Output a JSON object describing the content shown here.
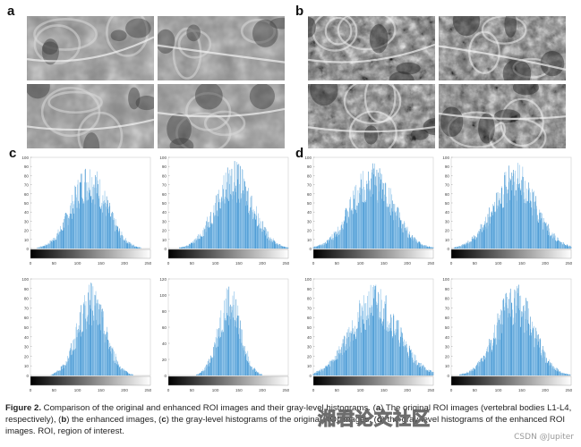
{
  "panels": {
    "a": {
      "label": "a"
    },
    "b": {
      "label": "b"
    },
    "c": {
      "label": "c"
    },
    "d": {
      "label": "d"
    }
  },
  "histogram_ticks": [
    "0",
    "50",
    "100",
    "150",
    "200",
    "250"
  ],
  "chart_data": [
    {
      "type": "bar",
      "panel": "c",
      "title": "",
      "ylim": [
        0,
        100
      ],
      "yticks": [
        0,
        10,
        20,
        30,
        40,
        50,
        60,
        70,
        80,
        90,
        100
      ],
      "xlim": [
        0,
        255
      ],
      "xticks": [
        0,
        50,
        100,
        150,
        200,
        250
      ],
      "peak_x": 125,
      "spread": 38
    },
    {
      "type": "bar",
      "panel": "c",
      "title": "",
      "ylim": [
        0,
        100
      ],
      "yticks": [
        0,
        10,
        20,
        30,
        40,
        50,
        60,
        70,
        80,
        90,
        100
      ],
      "xlim": [
        0,
        255
      ],
      "xticks": [
        0,
        50,
        100,
        150,
        200,
        250
      ],
      "peak_x": 140,
      "spread": 40
    },
    {
      "type": "bar",
      "panel": "c",
      "title": "",
      "ylim": [
        0,
        100
      ],
      "yticks": [
        0,
        10,
        20,
        30,
        40,
        50,
        60,
        70,
        80,
        90,
        100
      ],
      "xlim": [
        0,
        255
      ],
      "xticks": [
        0,
        50,
        100,
        150,
        200,
        250
      ],
      "peak_x": 130,
      "spread": 30
    },
    {
      "type": "bar",
      "panel": "c",
      "title": "",
      "ylim": [
        0,
        120
      ],
      "yticks": [
        0,
        20,
        40,
        60,
        80,
        100,
        120
      ],
      "xlim": [
        0,
        255
      ],
      "xticks": [
        0,
        50,
        100,
        150,
        200,
        250
      ],
      "peak_x": 130,
      "spread": 24
    },
    {
      "type": "bar",
      "panel": "d",
      "title": "",
      "ylim": [
        0,
        100
      ],
      "yticks": [
        0,
        10,
        20,
        30,
        40,
        50,
        60,
        70,
        80,
        90,
        100
      ],
      "xlim": [
        0,
        255
      ],
      "xticks": [
        0,
        50,
        100,
        150,
        200,
        250
      ],
      "peak_x": 125,
      "spread": 45
    },
    {
      "type": "bar",
      "panel": "d",
      "title": "",
      "ylim": [
        0,
        100
      ],
      "yticks": [
        0,
        10,
        20,
        30,
        40,
        50,
        60,
        70,
        80,
        90,
        100
      ],
      "xlim": [
        0,
        255
      ],
      "xticks": [
        0,
        50,
        100,
        150,
        200,
        250
      ],
      "peak_x": 135,
      "spread": 45
    },
    {
      "type": "bar",
      "panel": "d",
      "title": "",
      "ylim": [
        0,
        100
      ],
      "yticks": [
        0,
        10,
        20,
        30,
        40,
        50,
        60,
        70,
        80,
        90,
        100
      ],
      "xlim": [
        0,
        255
      ],
      "xticks": [
        0,
        50,
        100,
        150,
        200,
        250
      ],
      "peak_x": 130,
      "spread": 50
    },
    {
      "type": "bar",
      "panel": "d",
      "title": "",
      "ylim": [
        0,
        100
      ],
      "yticks": [
        0,
        10,
        20,
        30,
        40,
        50,
        60,
        70,
        80,
        90,
        100
      ],
      "xlim": [
        0,
        255
      ],
      "xticks": [
        0,
        50,
        100,
        150,
        200,
        250
      ],
      "peak_x": 135,
      "spread": 40
    }
  ],
  "caption": {
    "figure_label": "Figure 2.",
    "text_1": " Comparison of the original and enhanced ROI images and their gray-level histograms. (",
    "a": "a",
    "text_2": ") The original ROI images (vertebral bodies L1-L4, respectively), (",
    "b": "b",
    "text_3": ") the enhanced images, (",
    "c": "c",
    "text_4": ") the gray-level histograms of the original ROI images, (",
    "d": "d",
    "text_5": ") the gray-level histograms of the enhanced ROI images. ROI, region of interest."
  },
  "watermark": {
    "main": "湘君论文社区",
    "sub": "CSDN @Jupiter"
  },
  "colors": {
    "bar": "#2f87c8",
    "bar_light": "#7ab9e6"
  }
}
